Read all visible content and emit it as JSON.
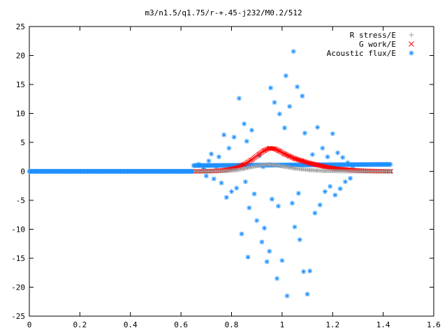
{
  "chart_data": {
    "type": "scatter",
    "title": "m3/n1.5/q1.75/r-+.45-j232/M0.2/512",
    "xlabel": "",
    "ylabel": "",
    "xlim": [
      0,
      1.6
    ],
    "ylim": [
      -25,
      25
    ],
    "x_ticks": [
      "0",
      "0.2",
      "0.4",
      "0.6",
      "0.8",
      "1",
      "1.2",
      "1.4",
      "1.6"
    ],
    "y_ticks": [
      "25",
      "20",
      "15",
      "10",
      "5",
      "0",
      "-5",
      "-10",
      "-15",
      "-20",
      "-25"
    ],
    "legend_position": "top-right",
    "grid": false,
    "series": [
      {
        "name": "R stress/E",
        "marker": "+",
        "color": "#a0a0a0",
        "points": [
          [
            0.66,
            0.0
          ],
          [
            0.7,
            0.0
          ],
          [
            0.74,
            0.02
          ],
          [
            0.78,
            0.06
          ],
          [
            0.82,
            0.2
          ],
          [
            0.85,
            0.45
          ],
          [
            0.88,
            0.75
          ],
          [
            0.91,
            1.0
          ],
          [
            0.93,
            1.15
          ],
          [
            0.95,
            1.2
          ],
          [
            0.97,
            1.1
          ],
          [
            0.99,
            0.95
          ],
          [
            1.01,
            0.8
          ],
          [
            1.03,
            0.65
          ],
          [
            1.05,
            0.5
          ],
          [
            1.08,
            0.35
          ],
          [
            1.11,
            0.22
          ],
          [
            1.14,
            0.14
          ],
          [
            1.17,
            0.08
          ],
          [
            1.2,
            0.05
          ],
          [
            1.24,
            0.02
          ],
          [
            1.28,
            0.0
          ],
          [
            1.32,
            0.0
          ],
          [
            1.36,
            0.0
          ],
          [
            1.4,
            0.0
          ],
          [
            1.43,
            0.0
          ]
        ]
      },
      {
        "name": "G work/E",
        "marker": "x",
        "color": "#ff0000",
        "points": [
          [
            0.66,
            0.0
          ],
          [
            0.7,
            0.02
          ],
          [
            0.74,
            0.08
          ],
          [
            0.78,
            0.25
          ],
          [
            0.82,
            0.6
          ],
          [
            0.85,
            1.2
          ],
          [
            0.88,
            2.0
          ],
          [
            0.91,
            3.0
          ],
          [
            0.93,
            3.6
          ],
          [
            0.95,
            4.0
          ],
          [
            0.97,
            3.9
          ],
          [
            0.99,
            3.5
          ],
          [
            1.01,
            3.0
          ],
          [
            1.03,
            2.6
          ],
          [
            1.05,
            2.2
          ],
          [
            1.08,
            1.8
          ],
          [
            1.11,
            1.4
          ],
          [
            1.14,
            1.1
          ],
          [
            1.17,
            0.8
          ],
          [
            1.2,
            0.55
          ],
          [
            1.24,
            0.35
          ],
          [
            1.28,
            0.2
          ],
          [
            1.32,
            0.1
          ],
          [
            1.36,
            0.05
          ],
          [
            1.4,
            0.02
          ],
          [
            1.43,
            0.0
          ]
        ]
      },
      {
        "name": "Acoustic flux/E",
        "marker": "*",
        "color": "#1e90ff",
        "baseline": {
          "value": 0.0,
          "x_from": 0.0,
          "x_to": 0.65
        },
        "upper_band": {
          "x_from": 0.65,
          "x_to": 1.43,
          "left_value": 1.0,
          "right_value": 1.2
        },
        "points": [
          [
            0.67,
            1.2
          ],
          [
            0.69,
            0.5
          ],
          [
            0.7,
            -0.8
          ],
          [
            0.71,
            1.8
          ],
          [
            0.72,
            3.0
          ],
          [
            0.73,
            -1.3
          ],
          [
            0.74,
            0.8
          ],
          [
            0.75,
            2.5
          ],
          [
            0.76,
            -2.0
          ],
          [
            0.77,
            6.3
          ],
          [
            0.78,
            -4.5
          ],
          [
            0.79,
            4.0
          ],
          [
            0.8,
            -3.5
          ],
          [
            0.81,
            5.9
          ],
          [
            0.82,
            -2.9
          ],
          [
            0.83,
            12.6
          ],
          [
            0.84,
            -10.8
          ],
          [
            0.85,
            8.2
          ],
          [
            0.855,
            -1.8
          ],
          [
            0.86,
            5.2
          ],
          [
            0.865,
            -14.8
          ],
          [
            0.87,
            -6.3
          ],
          [
            0.88,
            7.1
          ],
          [
            0.89,
            -3.9
          ],
          [
            0.9,
            -8.5
          ],
          [
            0.91,
            2.7
          ],
          [
            0.92,
            -12.2
          ],
          [
            0.925,
            0.8
          ],
          [
            0.93,
            -9.8
          ],
          [
            0.94,
            -15.6
          ],
          [
            0.95,
            -13.8
          ],
          [
            0.955,
            14.4
          ],
          [
            0.96,
            -4.8
          ],
          [
            0.97,
            11.9
          ],
          [
            0.98,
            -18.5
          ],
          [
            0.985,
            -6.0
          ],
          [
            0.99,
            9.9
          ],
          [
            1.0,
            -15.4
          ],
          [
            1.01,
            7.5
          ],
          [
            1.015,
            16.5
          ],
          [
            1.02,
            -21.5
          ],
          [
            1.03,
            11.2
          ],
          [
            1.04,
            -5.5
          ],
          [
            1.045,
            20.7
          ],
          [
            1.05,
            -9.6
          ],
          [
            1.06,
            14.6
          ],
          [
            1.065,
            -3.8
          ],
          [
            1.07,
            -11.8
          ],
          [
            1.08,
            13.0
          ],
          [
            1.085,
            -17.3
          ],
          [
            1.09,
            6.6
          ],
          [
            1.1,
            -21.2
          ],
          [
            1.11,
            -17.2
          ],
          [
            1.12,
            2.9
          ],
          [
            1.13,
            -7.2
          ],
          [
            1.14,
            7.6
          ],
          [
            1.15,
            -5.8
          ],
          [
            1.16,
            4.0
          ],
          [
            1.17,
            -3.5
          ],
          [
            1.18,
            2.5
          ],
          [
            1.19,
            -2.6
          ],
          [
            1.2,
            6.5
          ],
          [
            1.21,
            -4.1
          ],
          [
            1.22,
            3.2
          ],
          [
            1.23,
            -3.0
          ],
          [
            1.24,
            2.4
          ],
          [
            1.25,
            -1.8
          ],
          [
            1.26,
            1.5
          ],
          [
            1.27,
            -1.2
          ],
          [
            1.28,
            0.9
          ]
        ]
      }
    ]
  }
}
